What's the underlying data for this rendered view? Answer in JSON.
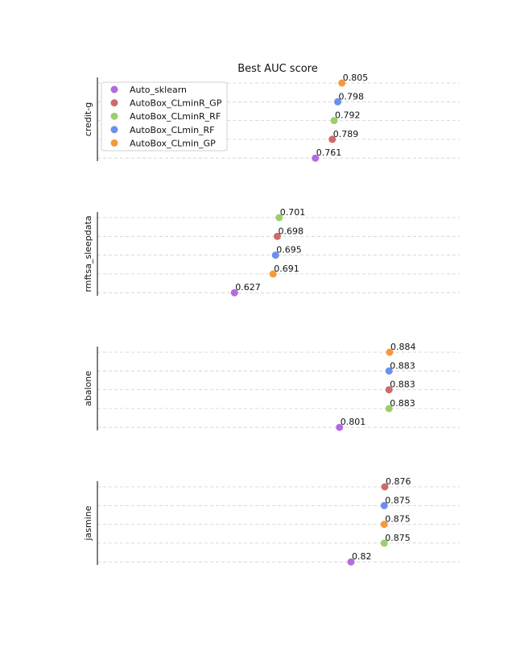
{
  "chart_data": {
    "type": "scatter",
    "title": "Best AUC score",
    "legend": {
      "placement": "top-left",
      "entries": [
        {
          "name": "Auto_sklearn",
          "color": "#b26be0"
        },
        {
          "name": "AutoBox_CLminR_GP",
          "color": "#cd6b6b"
        },
        {
          "name": "AutoBox_CLminR_RF",
          "color": "#9ccf6b"
        },
        {
          "name": "AutoBox_CLmin_RF",
          "color": "#6b8ff0"
        },
        {
          "name": "AutoBox_CLmin_GP",
          "color": "#f59a3a"
        }
      ]
    },
    "grid": true,
    "xlim": [
      0.4,
      1.0
    ],
    "panels": [
      {
        "dataset": "credit-g",
        "points": [
          {
            "series": "AutoBox_CLmin_GP",
            "value": 0.805,
            "label": "0.805"
          },
          {
            "series": "AutoBox_CLmin_RF",
            "value": 0.798,
            "label": "0.798"
          },
          {
            "series": "AutoBox_CLminR_RF",
            "value": 0.792,
            "label": "0.792"
          },
          {
            "series": "AutoBox_CLminR_GP",
            "value": 0.789,
            "label": "0.789"
          },
          {
            "series": "Auto_sklearn",
            "value": 0.761,
            "label": "0.761"
          }
        ]
      },
      {
        "dataset": "rmftsa_sleepdata",
        "points": [
          {
            "series": "AutoBox_CLminR_RF",
            "value": 0.701,
            "label": "0.701"
          },
          {
            "series": "AutoBox_CLminR_GP",
            "value": 0.698,
            "label": "0.698"
          },
          {
            "series": "AutoBox_CLmin_RF",
            "value": 0.695,
            "label": "0.695"
          },
          {
            "series": "AutoBox_CLmin_GP",
            "value": 0.691,
            "label": "0.691"
          },
          {
            "series": "Auto_sklearn",
            "value": 0.627,
            "label": "0.627"
          }
        ]
      },
      {
        "dataset": "abalone",
        "points": [
          {
            "series": "AutoBox_CLmin_GP",
            "value": 0.884,
            "label": "0.884"
          },
          {
            "series": "AutoBox_CLmin_RF",
            "value": 0.883,
            "label": "0.883"
          },
          {
            "series": "AutoBox_CLminR_GP",
            "value": 0.883,
            "label": "0.883"
          },
          {
            "series": "AutoBox_CLminR_RF",
            "value": 0.883,
            "label": "0.883"
          },
          {
            "series": "Auto_sklearn",
            "value": 0.801,
            "label": "0.801"
          }
        ]
      },
      {
        "dataset": "jasmine",
        "points": [
          {
            "series": "AutoBox_CLminR_GP",
            "value": 0.876,
            "label": "0.876"
          },
          {
            "series": "AutoBox_CLmin_RF",
            "value": 0.875,
            "label": "0.875"
          },
          {
            "series": "AutoBox_CLmin_GP",
            "value": 0.875,
            "label": "0.875"
          },
          {
            "series": "AutoBox_CLminR_RF",
            "value": 0.875,
            "label": "0.875"
          },
          {
            "series": "Auto_sklearn",
            "value": 0.82,
            "label": "0.82"
          }
        ]
      }
    ]
  }
}
